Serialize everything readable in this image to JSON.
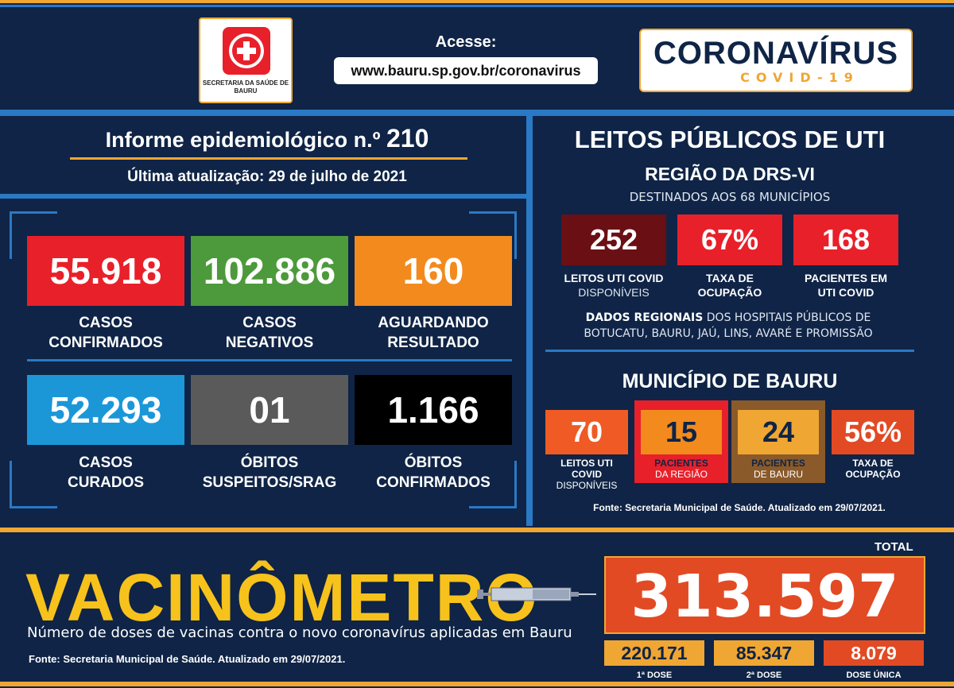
{
  "header": {
    "logo_text": "SECRETARIA DA SAÚDE DE BAURU",
    "acesse_label": "Acesse:",
    "url": "www.bauru.sp.gov.br/coronavirus",
    "brand_title": "CORONAVÍRUS",
    "brand_subtitle": "COVID-19"
  },
  "informe": {
    "title": "Informe epidemiológico n.º",
    "number": "210",
    "update_label": "Última atualização:",
    "update_date": "29 de julho de 2021"
  },
  "stats": [
    {
      "value": "55.918",
      "label_1": "CASOS",
      "label_2": "CONFIRMADOS",
      "color": "#e8202a"
    },
    {
      "value": "102.886",
      "label_1": "CASOS",
      "label_2": "NEGATIVOS",
      "color": "#4c9a3b"
    },
    {
      "value": "160",
      "label_1": "AGUARDANDO",
      "label_2": "RESULTADO",
      "color": "#f28a1e"
    },
    {
      "value": "52.293",
      "label_1": "CASOS",
      "label_2": "CURADOS",
      "color": "#1b97d8"
    },
    {
      "value": "01",
      "label_1": "ÓBITOS",
      "label_2": "SUSPEITOS/SRAG",
      "color": "#5a5a5a"
    },
    {
      "value": "1.166",
      "label_1": "ÓBITOS",
      "label_2": "CONFIRMADOS",
      "color": "#000000"
    }
  ],
  "uti": {
    "title": "LEITOS PÚBLICOS DE UTI",
    "region": "REGIÃO DA DRS-VI",
    "destinados": "DESTINADOS AOS 68 MUNICÍPIOS",
    "boxes": [
      {
        "value": "252",
        "label_1": "LEITOS UTI COVID",
        "label_2": "DISPONÍVEIS",
        "color": "#6a1014"
      },
      {
        "value": "67%",
        "label_1": "TAXA DE",
        "label_2": "OCUPAÇÃO",
        "color": "#e8202a"
      },
      {
        "value": "168",
        "label_1": "PACIENTES EM",
        "label_2": "UTI COVID",
        "color": "#e8202a"
      }
    ],
    "regional_bold": "DADOS REGIONAIS",
    "regional_text": " DOS HOSPITAIS PÚBLICOS DE",
    "regional_text_2": "BOTUCATU, BAURU, JAÚ, LINS, AVARÉ E PROMISSÃO"
  },
  "municipio": {
    "title": "MUNICÍPIO DE BAURU",
    "boxes": [
      {
        "value": "70",
        "label_1": "LEITOS UTI COVID",
        "label_2": "DISPONÍVEIS"
      },
      {
        "value": "15",
        "label_1": "PACIENTES",
        "label_2": "DA REGIÃO"
      },
      {
        "value": "24",
        "label_1": "PACIENTES",
        "label_2": "DE BAURU"
      },
      {
        "value": "56%",
        "label_1": "TAXA DE",
        "label_2": "OCUPAÇÃO"
      }
    ],
    "fonte": "Fonte: Secretaria Municipal de Saúde. Atualizado em 29/07/2021."
  },
  "vacinometro": {
    "title": "VACINÔMETRO",
    "description": "Número de doses de vacinas contra o novo coronavírus aplicadas em Bauru",
    "fonte": "Fonte: Secretaria Municipal de Saúde. Atualizado em 29/07/2021.",
    "total_label": "TOTAL",
    "total": "313.597",
    "doses": [
      {
        "value": "220.171",
        "label": "1ª DOSE"
      },
      {
        "value": "85.347",
        "label": "2ª DOSE"
      },
      {
        "value": "8.079",
        "label": "DOSE ÚNICA"
      }
    ]
  }
}
